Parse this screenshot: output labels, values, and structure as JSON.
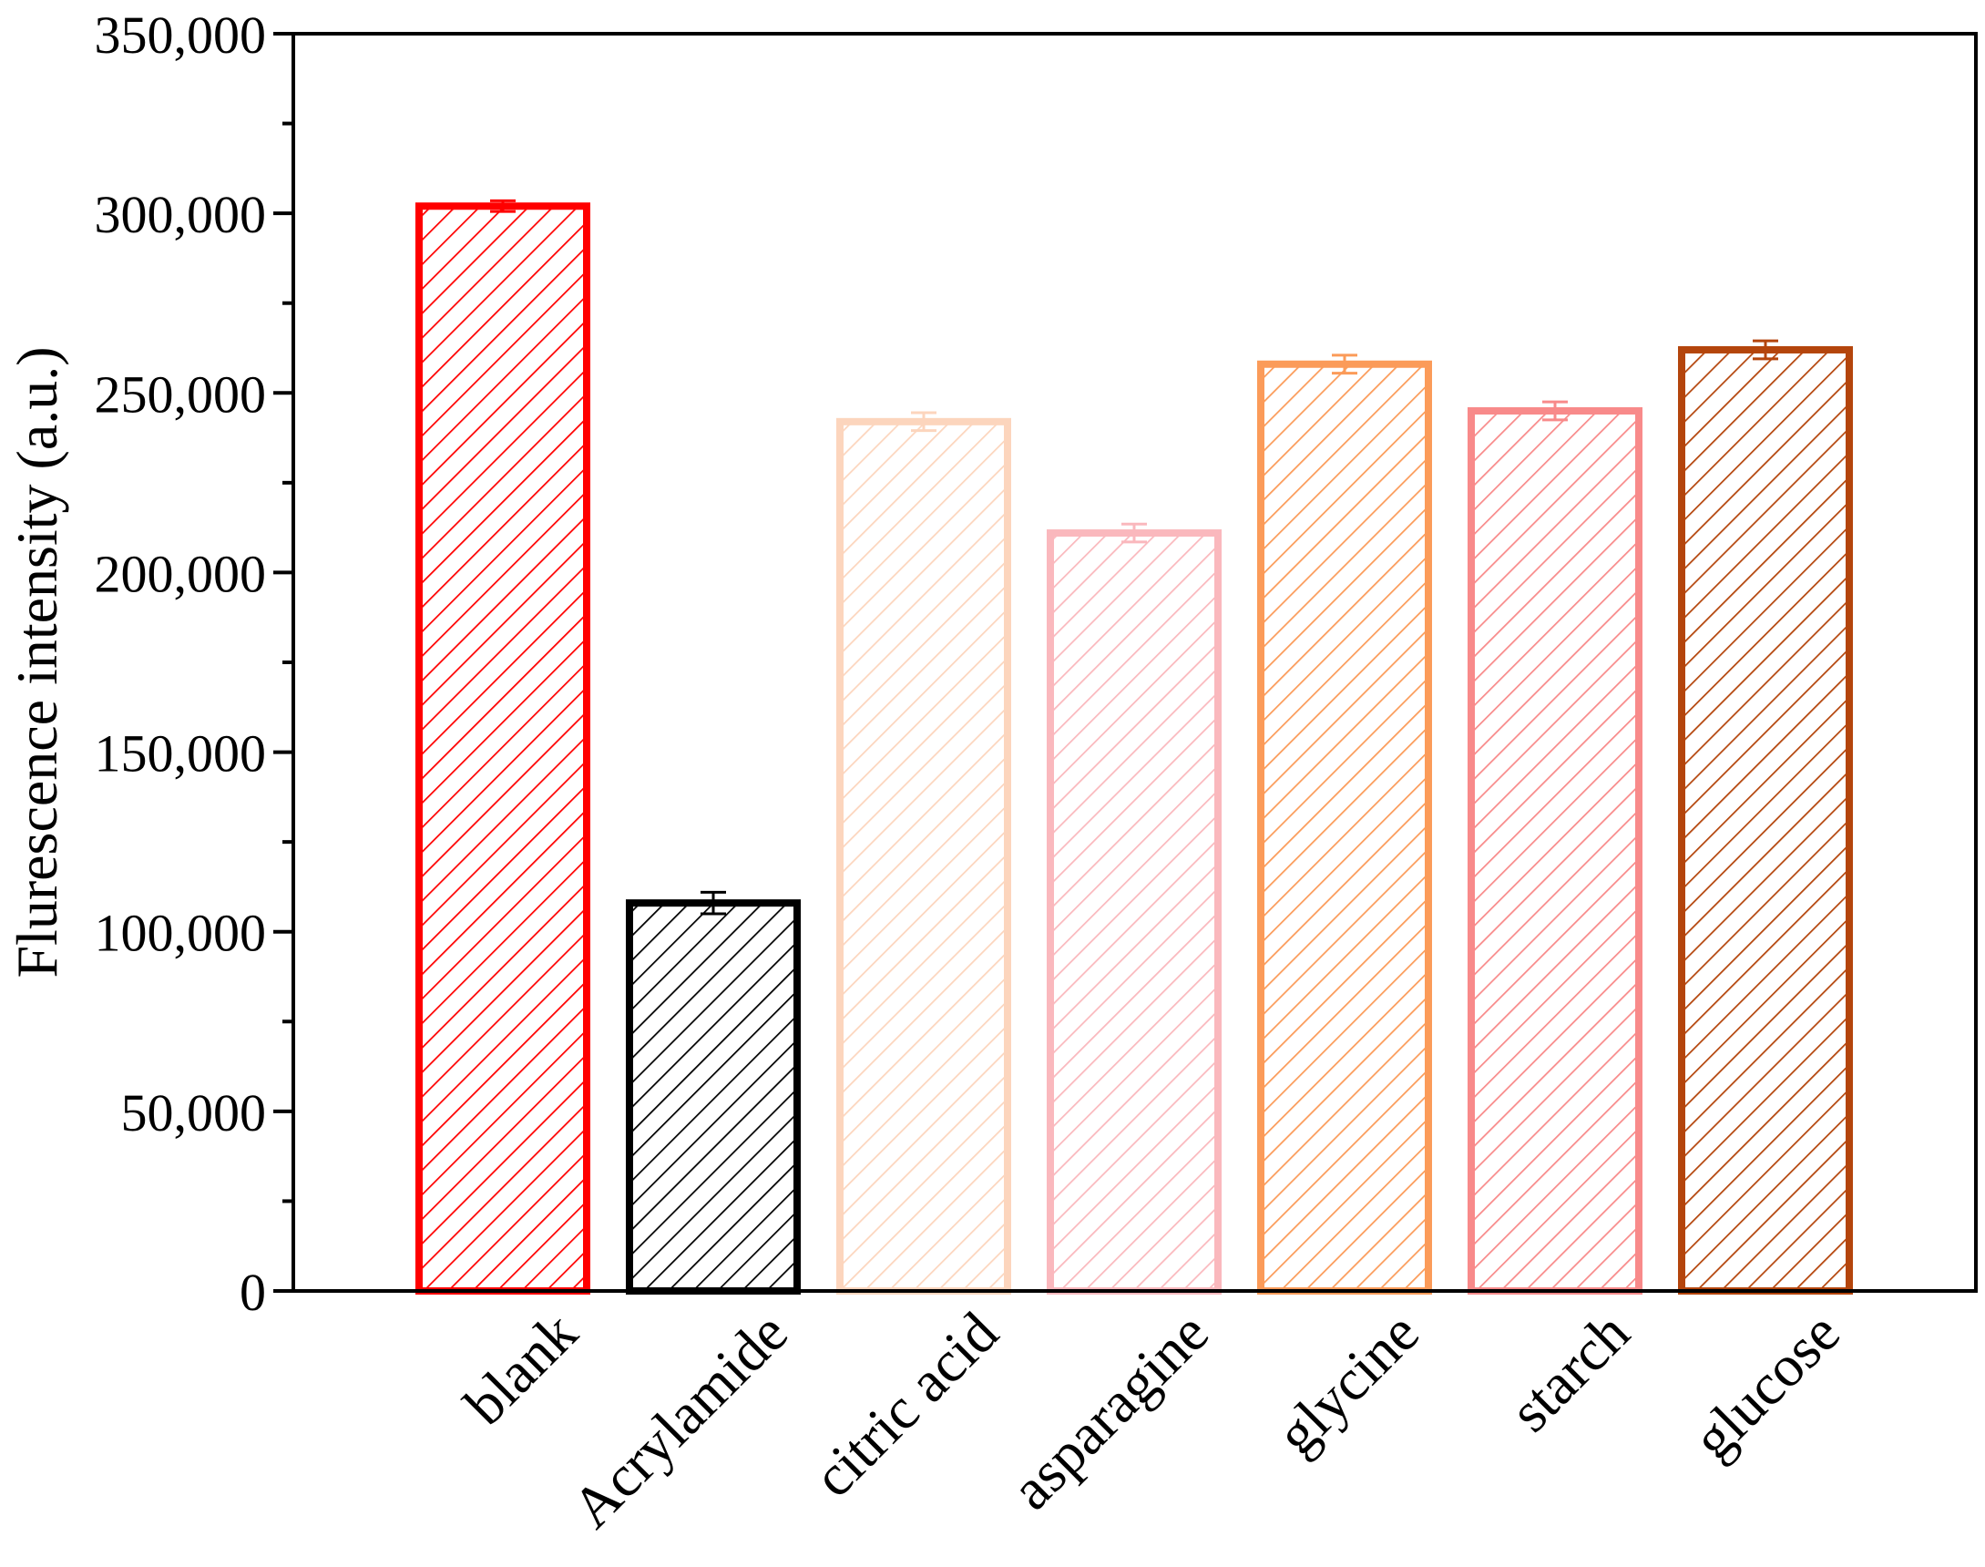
{
  "chart_data": {
    "type": "bar",
    "title": "",
    "xlabel": "",
    "ylabel": "Flurescence intensity (a.u.)",
    "ylim": [
      0,
      350000
    ],
    "yticks": [
      0,
      50000,
      100000,
      150000,
      200000,
      250000,
      300000,
      350000
    ],
    "ytick_labels": [
      "0",
      "50,000",
      "100,000",
      "150,000",
      "200,000",
      "250,000",
      "300,000",
      "350,000"
    ],
    "categories": [
      "blank",
      "Acrylamide",
      "citric acid",
      "asparagine",
      "glycine",
      "starch",
      "glucose"
    ],
    "values": [
      302000,
      108000,
      242000,
      211000,
      258000,
      245000,
      262000
    ],
    "errors": [
      1500,
      3000,
      2500,
      2500,
      2500,
      2500,
      2500
    ],
    "colors": [
      "#ff0000",
      "#000000",
      "#fcd5bd",
      "#fab8bd",
      "#fb9b59",
      "#f88a8a",
      "#b4450c"
    ],
    "pattern": "diagonal-hatch",
    "grid": false,
    "legend": "none"
  }
}
